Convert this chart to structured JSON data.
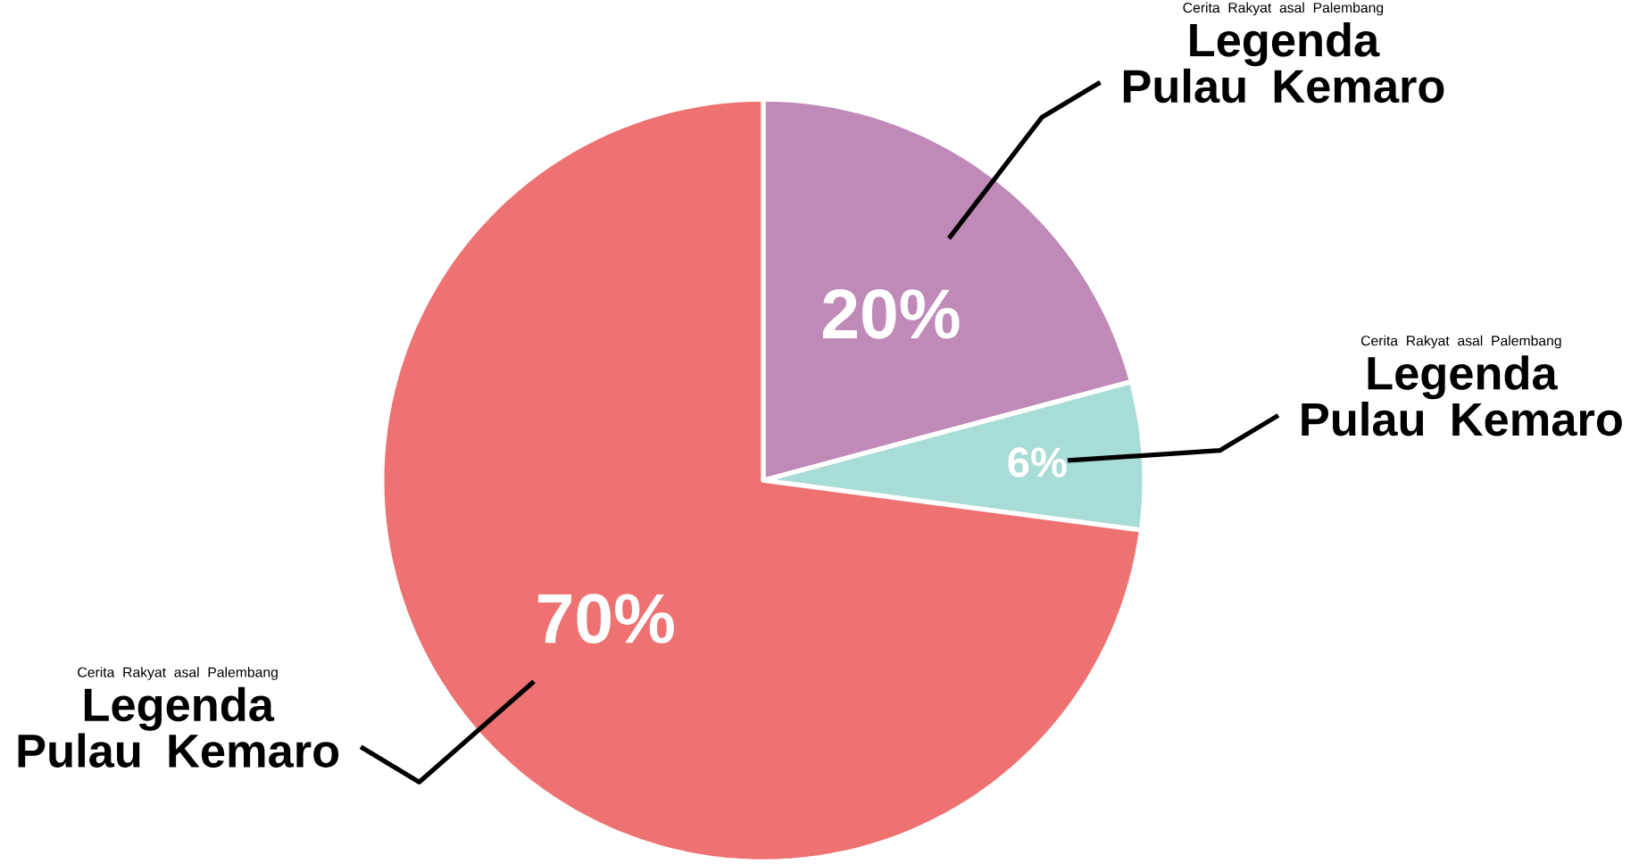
{
  "chart_data": {
    "type": "pie",
    "categories": [
      "Legenda Pulau Kemaro",
      "Legenda Pulau Kemaro",
      "Legenda Pulau Kemaro"
    ],
    "values": [
      20,
      6,
      70
    ],
    "value_labels": [
      "20%",
      "6%",
      "70%"
    ],
    "colors": [
      "#c08ab8",
      "#a8dcd6",
      "#ee7272"
    ],
    "annotations": [
      "Cerita Rakyat asal Palembang",
      "Cerita Rakyat asal Palembang",
      "Cerita Rakyat asal Palembang"
    ]
  }
}
